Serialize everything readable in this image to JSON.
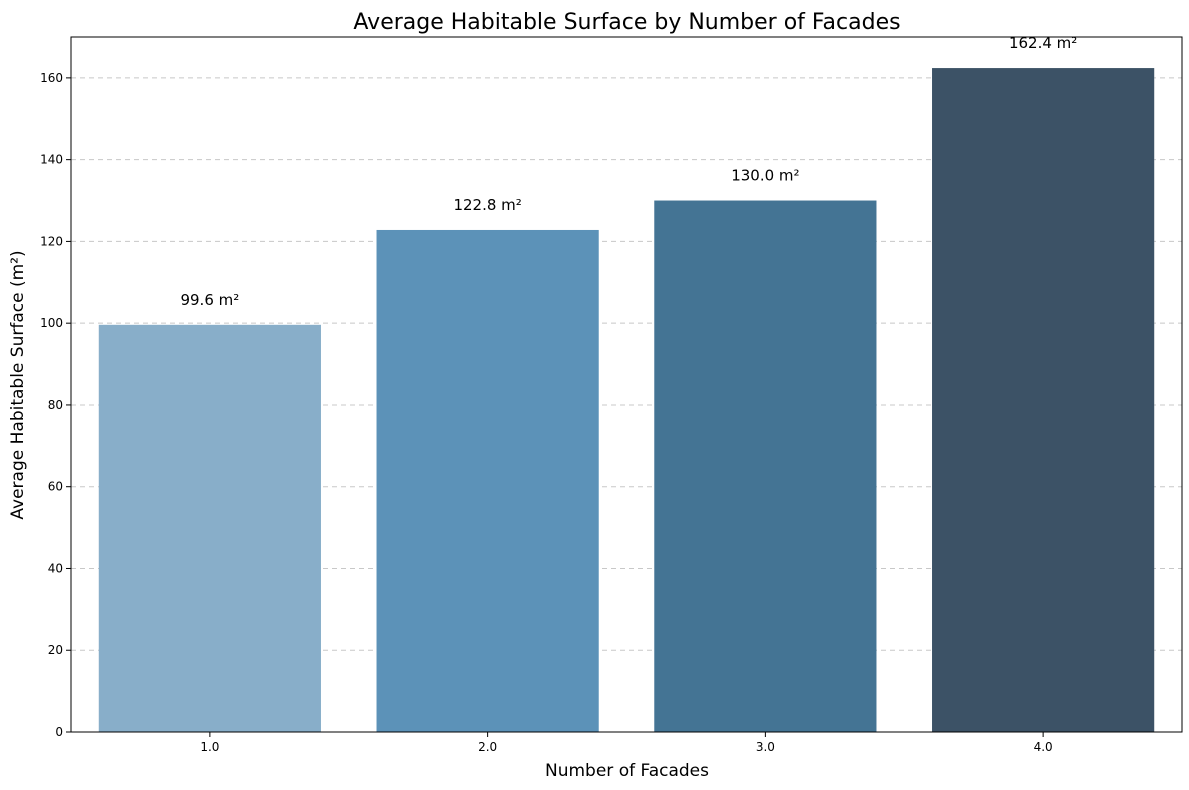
{
  "chart_data": {
    "type": "bar",
    "title": "Average Habitable Surface by Number of Facades",
    "xlabel": "Number of Facades",
    "ylabel": "Average Habitable Surface (m²)",
    "categories": [
      "1.0",
      "2.0",
      "3.0",
      "4.0"
    ],
    "values": [
      99.6,
      122.8,
      130.0,
      162.4
    ],
    "value_labels": [
      "99.6 m²",
      "122.8 m²",
      "130.0 m²",
      "162.4 m²"
    ],
    "colors": [
      "#88aec9",
      "#5c92b8",
      "#447494",
      "#3c5266"
    ],
    "ylim": [
      0,
      170
    ],
    "yticks": [
      0,
      20,
      40,
      60,
      80,
      100,
      120,
      140,
      160
    ],
    "grid": "y-dashed"
  }
}
